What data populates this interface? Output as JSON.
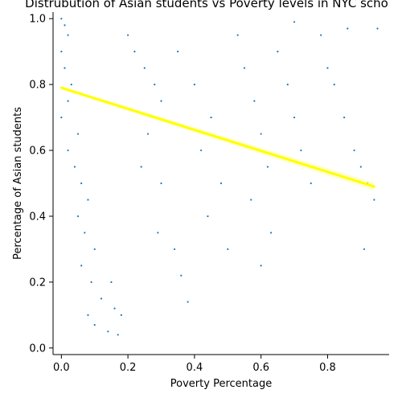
{
  "chart_data": {
    "type": "scatter",
    "title": "Distrubution of Asian students vs Poverty levels in NYC scho",
    "xlabel": "Poverty Percentage",
    "ylabel": "Percentage of Asian students",
    "xlim": [
      -0.025,
      0.985
    ],
    "ylim": [
      -0.02,
      1.02
    ],
    "x_ticks": [
      0.0,
      0.2,
      0.4,
      0.6,
      0.8
    ],
    "x_tick_labels": [
      "0.0",
      "0.2",
      "0.4",
      "0.6",
      "0.8"
    ],
    "y_ticks": [
      0.0,
      0.2,
      0.4,
      0.6,
      0.8,
      1.0
    ],
    "y_tick_labels": [
      "0.0",
      "0.2",
      "0.4",
      "0.6",
      "0.8",
      "1.0"
    ],
    "grid": false,
    "legend": false,
    "spines": "left-bottom",
    "colors": {
      "points": "#1f77b4",
      "regression_line": "#ffff00",
      "confidence_band": "#ffff99"
    },
    "series": [
      {
        "kind": "scatter",
        "points": [
          [
            0.0,
            1.0
          ],
          [
            0.01,
            0.98
          ],
          [
            0.02,
            0.95
          ],
          [
            0.0,
            0.9
          ],
          [
            0.01,
            0.85
          ],
          [
            0.03,
            0.8
          ],
          [
            0.02,
            0.75
          ],
          [
            0.0,
            0.7
          ],
          [
            0.05,
            0.65
          ],
          [
            0.02,
            0.6
          ],
          [
            0.04,
            0.55
          ],
          [
            0.06,
            0.5
          ],
          [
            0.08,
            0.45
          ],
          [
            0.05,
            0.4
          ],
          [
            0.07,
            0.35
          ],
          [
            0.1,
            0.3
          ],
          [
            0.06,
            0.25
          ],
          [
            0.09,
            0.2
          ],
          [
            0.12,
            0.15
          ],
          [
            0.08,
            0.1
          ],
          [
            0.1,
            0.07
          ],
          [
            0.14,
            0.05
          ],
          [
            0.17,
            0.04
          ],
          [
            0.16,
            0.12
          ],
          [
            0.18,
            0.1
          ],
          [
            0.15,
            0.2
          ],
          [
            0.2,
            0.95
          ],
          [
            0.22,
            0.9
          ],
          [
            0.25,
            0.85
          ],
          [
            0.28,
            0.8
          ],
          [
            0.3,
            0.75
          ],
          [
            0.26,
            0.65
          ],
          [
            0.24,
            0.55
          ],
          [
            0.3,
            0.5
          ],
          [
            0.29,
            0.35
          ],
          [
            0.34,
            0.3
          ],
          [
            0.36,
            0.22
          ],
          [
            0.38,
            0.14
          ],
          [
            0.35,
            0.9
          ],
          [
            0.4,
            0.8
          ],
          [
            0.45,
            0.7
          ],
          [
            0.42,
            0.6
          ],
          [
            0.48,
            0.5
          ],
          [
            0.44,
            0.4
          ],
          [
            0.5,
            0.3
          ],
          [
            0.53,
            0.95
          ],
          [
            0.55,
            0.85
          ],
          [
            0.58,
            0.75
          ],
          [
            0.6,
            0.65
          ],
          [
            0.62,
            0.55
          ],
          [
            0.57,
            0.45
          ],
          [
            0.63,
            0.35
          ],
          [
            0.6,
            0.25
          ],
          [
            0.65,
            0.9
          ],
          [
            0.68,
            0.8
          ],
          [
            0.7,
            0.7
          ],
          [
            0.72,
            0.6
          ],
          [
            0.75,
            0.5
          ],
          [
            0.7,
            0.99
          ],
          [
            0.78,
            0.95
          ],
          [
            0.8,
            0.85
          ],
          [
            0.82,
            0.8
          ],
          [
            0.85,
            0.7
          ],
          [
            0.88,
            0.6
          ],
          [
            0.9,
            0.55
          ],
          [
            0.92,
            0.5
          ],
          [
            0.94,
            0.45
          ],
          [
            0.95,
            0.97
          ],
          [
            0.86,
            0.97
          ],
          [
            0.91,
            0.3
          ]
        ]
      },
      {
        "kind": "regression",
        "x": [
          0.0,
          0.94
        ],
        "y": [
          0.79,
          0.49
        ]
      }
    ]
  }
}
